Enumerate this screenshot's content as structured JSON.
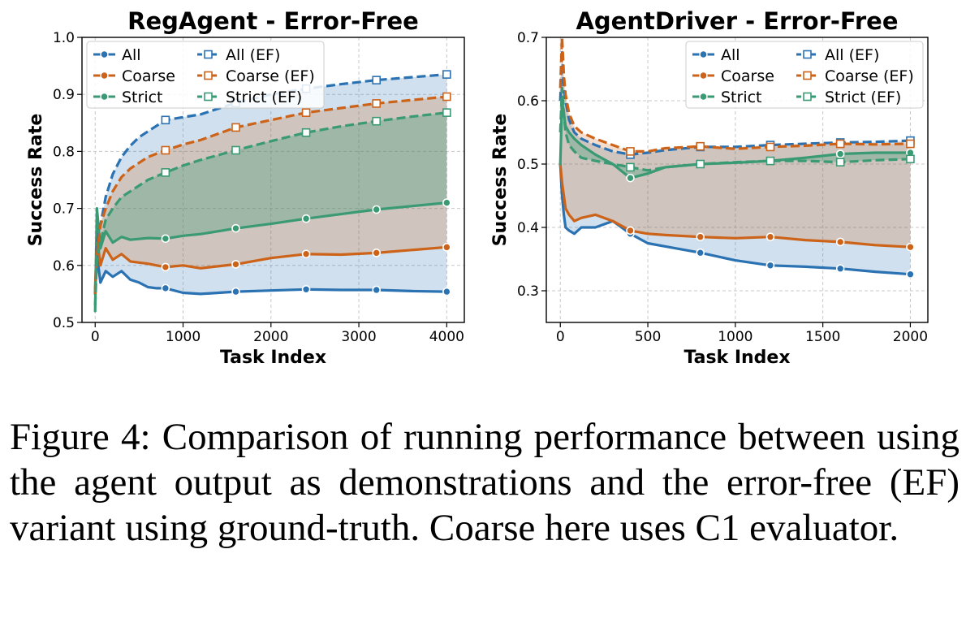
{
  "caption": "Figure 4: Comparison of running performance between using the agent output as demonstrations and the error-free (EF) variant using ground-truth. Coarse here uses C1 evaluator.",
  "colors": {
    "all": "#2b72b2",
    "coarse": "#cc6319",
    "strict": "#3a9a74",
    "grid": "#c8c8c8"
  },
  "chart_data": [
    {
      "type": "line",
      "title": "RegAgent - Error-Free",
      "xlabel": "Task Index",
      "ylabel": "Success Rate",
      "xlim": [
        -150,
        4200
      ],
      "ylim": [
        0.5,
        1.0
      ],
      "xticks": [
        0,
        1000,
        2000,
        3000,
        4000
      ],
      "xtick_labels": [
        "0",
        "1000",
        "2000",
        "3000",
        "4000"
      ],
      "yticks": [
        0.5,
        0.6,
        0.7,
        0.8,
        0.9,
        1.0
      ],
      "ytick_labels": [
        "0.5",
        "0.6",
        "0.7",
        "0.8",
        "0.9",
        "1.0"
      ],
      "grid": true,
      "legend_location": "upper-left",
      "legend": [
        "All",
        "Coarse",
        "Strict",
        "All (EF)",
        "Coarse (EF)",
        "Strict (EF)"
      ],
      "series": [
        {
          "name": "All",
          "key": "all",
          "style": "solid",
          "marker": "circle",
          "x": [
            0,
            20,
            60,
            120,
            200,
            300,
            400,
            500,
            600,
            700,
            800,
            1000,
            1200,
            1600,
            2000,
            2400,
            2800,
            3200,
            3600,
            4000
          ],
          "y": [
            0.55,
            0.62,
            0.57,
            0.59,
            0.58,
            0.59,
            0.575,
            0.57,
            0.562,
            0.56,
            0.56,
            0.552,
            0.55,
            0.554,
            0.556,
            0.558,
            0.557,
            0.557,
            0.555,
            0.554
          ]
        },
        {
          "name": "Coarse",
          "key": "coarse",
          "style": "solid",
          "marker": "circle",
          "x": [
            0,
            20,
            60,
            120,
            200,
            300,
            400,
            600,
            800,
            1000,
            1200,
            1600,
            2000,
            2400,
            2800,
            3200,
            3600,
            4000
          ],
          "y": [
            0.56,
            0.65,
            0.6,
            0.63,
            0.61,
            0.62,
            0.607,
            0.603,
            0.597,
            0.6,
            0.595,
            0.602,
            0.613,
            0.62,
            0.619,
            0.622,
            0.627,
            0.632
          ]
        },
        {
          "name": "Strict",
          "key": "strict",
          "style": "solid",
          "marker": "circle",
          "x": [
            0,
            20,
            60,
            120,
            200,
            300,
            400,
            600,
            800,
            1000,
            1200,
            1600,
            2000,
            2400,
            2800,
            3200,
            3600,
            4000
          ],
          "y": [
            0.52,
            0.7,
            0.63,
            0.66,
            0.64,
            0.65,
            0.645,
            0.648,
            0.647,
            0.652,
            0.655,
            0.665,
            0.673,
            0.682,
            0.69,
            0.698,
            0.704,
            0.71
          ]
        },
        {
          "name": "All (EF)",
          "key": "all",
          "style": "dashed",
          "marker": "square",
          "x": [
            0,
            20,
            60,
            120,
            200,
            300,
            400,
            500,
            600,
            800,
            1000,
            1200,
            1600,
            2000,
            2400,
            2800,
            3200,
            3600,
            4000
          ],
          "y": [
            0.55,
            0.64,
            0.67,
            0.72,
            0.76,
            0.79,
            0.81,
            0.825,
            0.835,
            0.855,
            0.86,
            0.865,
            0.885,
            0.9,
            0.91,
            0.918,
            0.925,
            0.93,
            0.935
          ]
        },
        {
          "name": "Coarse (EF)",
          "key": "coarse",
          "style": "dashed",
          "marker": "square",
          "x": [
            0,
            20,
            60,
            120,
            200,
            300,
            400,
            500,
            600,
            800,
            1000,
            1200,
            1600,
            2000,
            2400,
            2800,
            3200,
            3600,
            4000
          ],
          "y": [
            0.55,
            0.62,
            0.67,
            0.7,
            0.73,
            0.755,
            0.77,
            0.78,
            0.79,
            0.802,
            0.812,
            0.82,
            0.842,
            0.855,
            0.868,
            0.876,
            0.884,
            0.89,
            0.896
          ]
        },
        {
          "name": "Strict (EF)",
          "key": "strict",
          "style": "dashed",
          "marker": "square",
          "x": [
            0,
            20,
            60,
            120,
            200,
            300,
            400,
            500,
            600,
            800,
            1000,
            1200,
            1600,
            2000,
            2400,
            2800,
            3200,
            3600,
            4000
          ],
          "y": [
            0.53,
            0.61,
            0.64,
            0.68,
            0.7,
            0.72,
            0.73,
            0.74,
            0.75,
            0.763,
            0.775,
            0.785,
            0.802,
            0.818,
            0.833,
            0.844,
            0.853,
            0.861,
            0.868
          ]
        }
      ]
    },
    {
      "type": "line",
      "title": "AgentDriver - Error-Free",
      "xlabel": "Task Index",
      "ylabel": "Success Rate",
      "xlim": [
        -80,
        2100
      ],
      "ylim": [
        0.25,
        0.7
      ],
      "xticks": [
        0,
        500,
        1000,
        1500,
        2000
      ],
      "xtick_labels": [
        "0",
        "500",
        "1000",
        "1500",
        "2000"
      ],
      "yticks": [
        0.3,
        0.4,
        0.5,
        0.6,
        0.7
      ],
      "ytick_labels": [
        "0.3",
        "0.4",
        "0.5",
        "0.6",
        "0.7"
      ],
      "grid": true,
      "legend_location": "upper-right",
      "legend": [
        "All",
        "Coarse",
        "Strict",
        "All (EF)",
        "Coarse (EF)",
        "Strict (EF)"
      ],
      "series": [
        {
          "name": "All",
          "key": "all",
          "style": "solid",
          "marker": "circle",
          "x": [
            0,
            10,
            20,
            30,
            50,
            80,
            120,
            200,
            300,
            400,
            500,
            600,
            800,
            1000,
            1200,
            1400,
            1600,
            1800,
            2000
          ],
          "y": [
            0.5,
            0.45,
            0.42,
            0.4,
            0.395,
            0.39,
            0.4,
            0.4,
            0.41,
            0.39,
            0.375,
            0.37,
            0.36,
            0.348,
            0.34,
            0.338,
            0.335,
            0.33,
            0.326
          ]
        },
        {
          "name": "Coarse",
          "key": "coarse",
          "style": "solid",
          "marker": "circle",
          "x": [
            0,
            10,
            20,
            30,
            50,
            80,
            120,
            200,
            300,
            400,
            500,
            600,
            800,
            1000,
            1200,
            1400,
            1600,
            1800,
            2000
          ],
          "y": [
            0.5,
            0.47,
            0.45,
            0.43,
            0.42,
            0.41,
            0.415,
            0.42,
            0.41,
            0.395,
            0.39,
            0.388,
            0.385,
            0.383,
            0.385,
            0.38,
            0.377,
            0.372,
            0.369
          ]
        },
        {
          "name": "Strict",
          "key": "strict",
          "style": "solid",
          "marker": "circle",
          "x": [
            0,
            10,
            20,
            30,
            50,
            80,
            120,
            200,
            300,
            400,
            500,
            600,
            800,
            1000,
            1200,
            1400,
            1600,
            1800,
            2000
          ],
          "y": [
            0.5,
            0.6,
            0.58,
            0.56,
            0.55,
            0.54,
            0.53,
            0.515,
            0.5,
            0.478,
            0.485,
            0.495,
            0.5,
            0.502,
            0.505,
            0.51,
            0.516,
            0.518,
            0.518
          ]
        },
        {
          "name": "All (EF)",
          "key": "all",
          "style": "dashed",
          "marker": "square",
          "x": [
            0,
            10,
            20,
            30,
            50,
            80,
            120,
            200,
            300,
            400,
            500,
            600,
            800,
            1000,
            1200,
            1400,
            1600,
            1800,
            2000
          ],
          "y": [
            0.6,
            0.68,
            0.62,
            0.6,
            0.57,
            0.55,
            0.54,
            0.53,
            0.52,
            0.515,
            0.518,
            0.522,
            0.527,
            0.527,
            0.53,
            0.532,
            0.534,
            0.535,
            0.537
          ]
        },
        {
          "name": "Coarse (EF)",
          "key": "coarse",
          "style": "dashed",
          "marker": "square",
          "x": [
            0,
            10,
            20,
            30,
            50,
            80,
            120,
            200,
            300,
            400,
            500,
            600,
            800,
            1000,
            1200,
            1400,
            1600,
            1800,
            2000
          ],
          "y": [
            0.62,
            0.7,
            0.64,
            0.61,
            0.58,
            0.56,
            0.55,
            0.54,
            0.53,
            0.52,
            0.52,
            0.525,
            0.528,
            0.524,
            0.527,
            0.529,
            0.532,
            0.531,
            0.532
          ]
        },
        {
          "name": "Strict (EF)",
          "key": "strict",
          "style": "dashed",
          "marker": "square",
          "x": [
            0,
            10,
            20,
            30,
            50,
            80,
            120,
            200,
            300,
            400,
            500,
            600,
            800,
            1000,
            1200,
            1400,
            1600,
            1800,
            2000
          ],
          "y": [
            0.55,
            0.62,
            0.58,
            0.55,
            0.53,
            0.52,
            0.51,
            0.505,
            0.5,
            0.495,
            0.49,
            0.495,
            0.5,
            0.503,
            0.505,
            0.505,
            0.503,
            0.506,
            0.508
          ]
        }
      ]
    }
  ]
}
